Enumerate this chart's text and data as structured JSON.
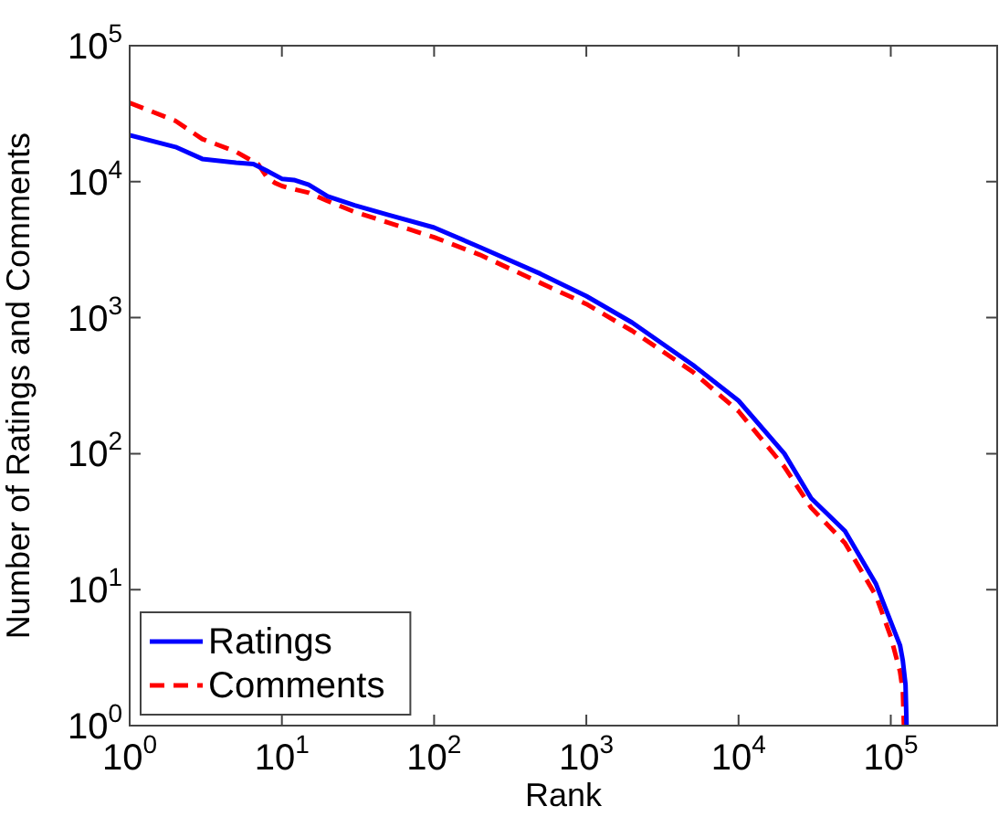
{
  "chart_data": {
    "type": "line",
    "xlabel": "Rank",
    "ylabel": "Number of Ratings and Comments",
    "log": "xy",
    "xlim": [
      1,
      500000
    ],
    "ylim": [
      1,
      100000
    ],
    "xticks": [
      {
        "value": 1,
        "label": "10$^{0}$"
      },
      {
        "value": 10,
        "label": "10$^{1}$"
      },
      {
        "value": 100,
        "label": "10$^{2}$"
      },
      {
        "value": 1000,
        "label": "10$^{3}$"
      },
      {
        "value": 10000,
        "label": "10$^{4}$"
      },
      {
        "value": 100000,
        "label": "10$^{5}$"
      }
    ],
    "yticks": [
      {
        "value": 1,
        "label": "10$^{0}$"
      },
      {
        "value": 10,
        "label": "10$^{1}$"
      },
      {
        "value": 100,
        "label": "10$^{2}$"
      },
      {
        "value": 1000,
        "label": "10$^{3}$"
      },
      {
        "value": 10000,
        "label": "10$^{4}$"
      },
      {
        "value": 100000,
        "label": "10$^{5}$"
      }
    ],
    "grid": false,
    "legend": "bottom left",
    "marker": "none",
    "series": [
      {
        "name": "Ratings",
        "color": "#0000ff",
        "line_style": "solid",
        "x": [
          1,
          2,
          3,
          5,
          6.5,
          8,
          10,
          12,
          15,
          20,
          30,
          50,
          100,
          200,
          500,
          1000,
          2000,
          5000,
          10000,
          20000,
          30000,
          50000,
          80000,
          100000,
          115000,
          120000,
          125000,
          127000
        ],
        "values": [
          22000,
          18000,
          14700,
          13800,
          13500,
          12000,
          10500,
          10300,
          9500,
          7800,
          6700,
          5700,
          4600,
          3300,
          2100,
          1440,
          920,
          450,
          245,
          100,
          47,
          27,
          11,
          5.8,
          3.9,
          3,
          2,
          1
        ]
      },
      {
        "name": "Comments",
        "color": "#ff0000",
        "line_style": "dashed",
        "x": [
          1,
          2,
          3,
          5,
          7,
          8,
          9,
          10,
          12,
          15,
          20,
          30,
          50,
          100,
          200,
          500,
          1000,
          2000,
          5000,
          10000,
          20000,
          30000,
          50000,
          80000,
          100000,
          115000,
          120000,
          122000
        ],
        "values": [
          38000,
          28000,
          20600,
          16600,
          13400,
          10700,
          9800,
          9300,
          8800,
          8300,
          7200,
          6000,
          5000,
          3900,
          2900,
          1800,
          1260,
          800,
          400,
          205,
          80,
          40,
          22,
          9,
          4.5,
          2.5,
          1.8,
          1
        ]
      }
    ]
  }
}
